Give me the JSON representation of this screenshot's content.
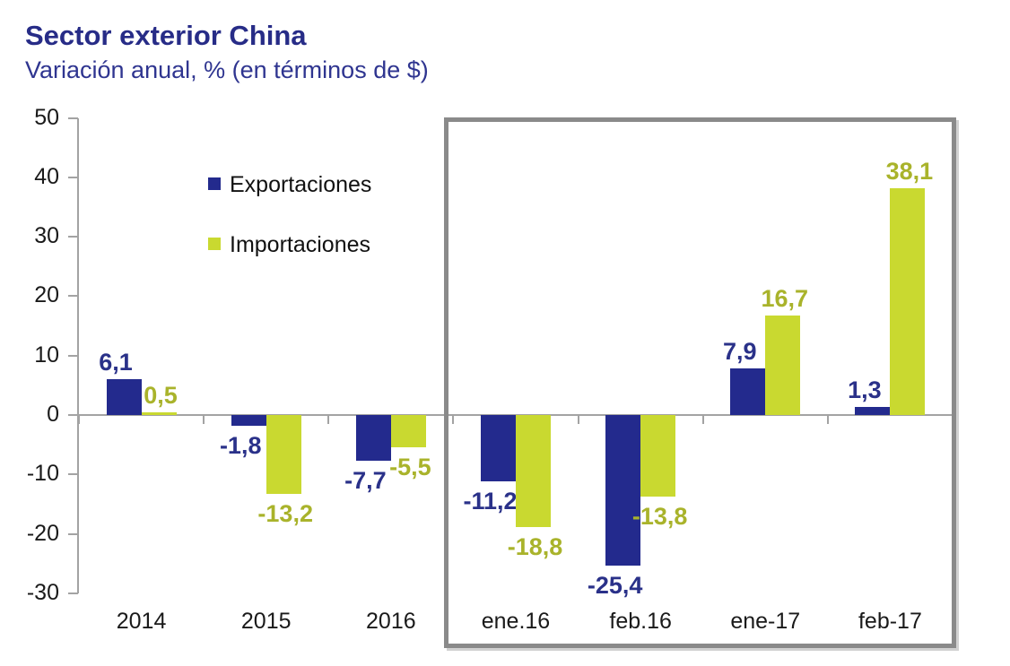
{
  "header": {
    "title": "Sector exterior China",
    "subtitle": "Variación anual, % (en términos de $)",
    "title_color": "#272c87",
    "subtitle_color": "#2f3590"
  },
  "legend": {
    "position": "inside-top-left",
    "items": [
      {
        "label": "Exportaciones",
        "color": "#232a8d"
      },
      {
        "label": "Importaciones",
        "color": "#c9d930"
      }
    ]
  },
  "chart_data": {
    "type": "bar",
    "title": "Sector exterior China",
    "subtitle": "Variación anual, % (en términos de $)",
    "categories": [
      "2014",
      "2015",
      "2016",
      "ene.16",
      "feb.16",
      "ene-17",
      "feb-17"
    ],
    "series": [
      {
        "name": "Exportaciones",
        "color": "#232a8d",
        "label_color": "#2a3189",
        "values": [
          6.1,
          -1.8,
          -7.7,
          -11.2,
          -25.4,
          7.9,
          1.3
        ]
      },
      {
        "name": "Importaciones",
        "color": "#c9d930",
        "label_color": "#a9b32b",
        "values": [
          0.5,
          -13.2,
          -5.5,
          -18.8,
          -13.8,
          16.7,
          38.1
        ]
      }
    ],
    "ylabel": "",
    "xlabel": "",
    "ylim": [
      -30,
      50
    ],
    "ytick_step": 10,
    "grid": false,
    "legend_position": "inside-top-left",
    "decimal_separator": ",",
    "data_labels": true,
    "axis_color": "#a3a3a3",
    "tick_label_color": "#1a1a1a",
    "highlight_box": {
      "from": "ene.16",
      "to": "feb-17",
      "color": "#8a8a8a"
    }
  }
}
